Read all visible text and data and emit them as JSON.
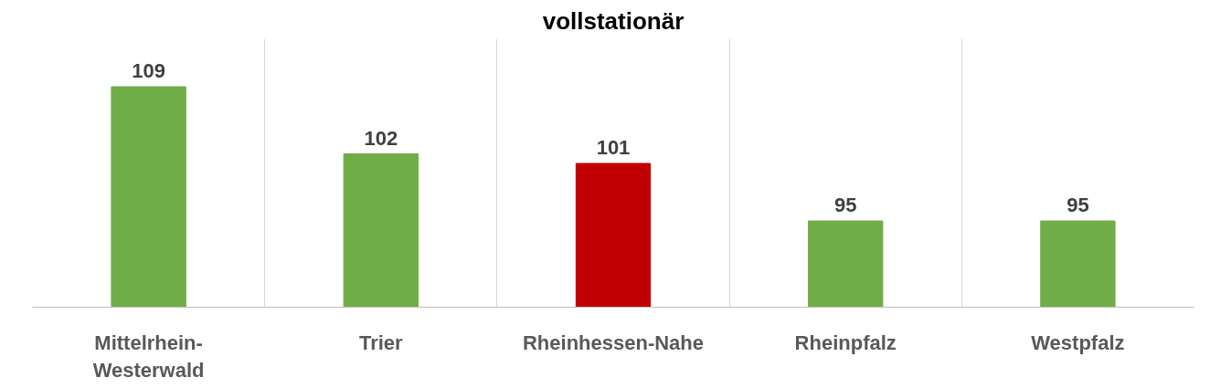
{
  "chart_data": {
    "type": "bar",
    "title": "vollstationär",
    "categories": [
      "Mittelrhein-Westerwald",
      "Trier",
      "Rheinhessen-Nahe",
      "Rheinpfalz",
      "Westpfalz"
    ],
    "values": [
      109,
      102,
      101,
      95,
      95
    ],
    "colors": [
      "#70ad47",
      "#70ad47",
      "#c00000",
      "#70ad47",
      "#70ad47"
    ],
    "ylim": [
      86,
      114
    ],
    "data_labels": true,
    "grid": "x"
  }
}
